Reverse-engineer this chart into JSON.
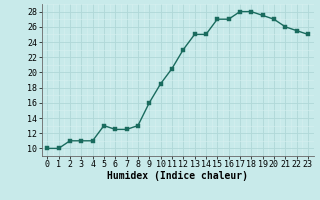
{
  "x": [
    0,
    1,
    2,
    3,
    4,
    5,
    6,
    7,
    8,
    9,
    10,
    11,
    12,
    13,
    14,
    15,
    16,
    17,
    18,
    19,
    20,
    21,
    22,
    23
  ],
  "y": [
    10,
    10,
    11,
    11,
    11,
    13,
    12.5,
    12.5,
    13,
    16,
    18.5,
    20.5,
    23,
    25,
    25,
    27,
    27,
    28,
    28,
    27.5,
    27,
    26,
    25.5,
    25
  ],
  "line_color": "#1a6b5e",
  "marker_color": "#1a6b5e",
  "bg_color": "#c8eaea",
  "grid_major_color": "#b0d8d8",
  "grid_minor_color": "#d8f0f0",
  "xlabel": "Humidex (Indice chaleur)",
  "ylim": [
    9,
    29
  ],
  "yticks": [
    10,
    12,
    14,
    16,
    18,
    20,
    22,
    24,
    26,
    28
  ],
  "xticks": [
    0,
    1,
    2,
    3,
    4,
    5,
    6,
    7,
    8,
    9,
    10,
    11,
    12,
    13,
    14,
    15,
    16,
    17,
    18,
    19,
    20,
    21,
    22,
    23
  ],
  "xlabel_fontsize": 7,
  "tick_fontsize": 6,
  "line_width": 1.0,
  "marker_size": 2.5
}
